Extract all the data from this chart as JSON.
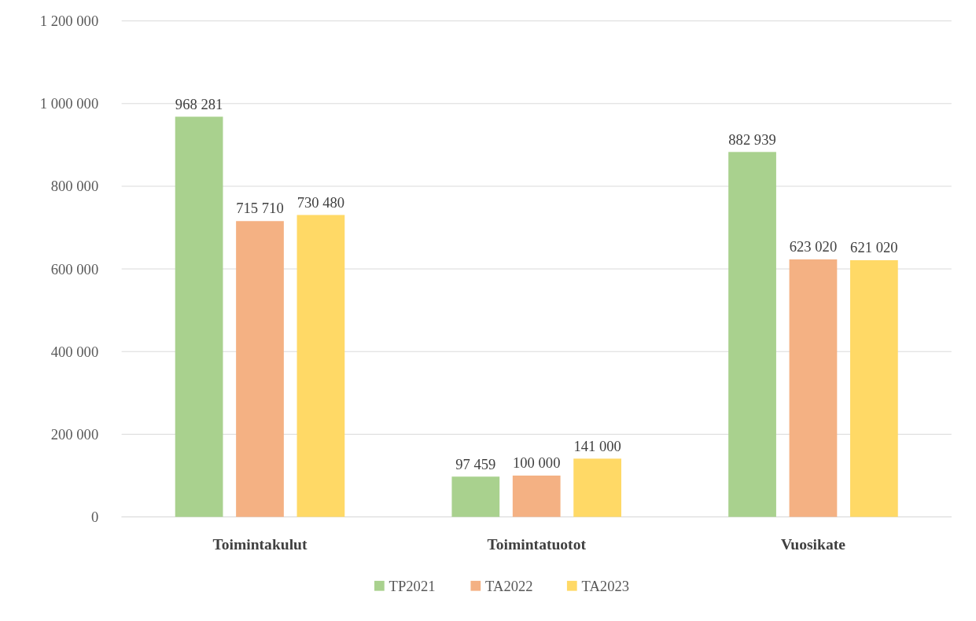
{
  "chart_data": {
    "type": "bar",
    "categories": [
      "Toimintakulut",
      "Toimintatuotot",
      "Vuosikate"
    ],
    "series": [
      {
        "name": "TP2021",
        "color": "#a9d18e",
        "values": [
          968281,
          97459,
          882939
        ]
      },
      {
        "name": "TA2022",
        "color": "#f4b183",
        "values": [
          715710,
          100000,
          623020
        ]
      },
      {
        "name": "TA2023",
        "color": "#ffd966",
        "values": [
          730480,
          141000,
          621020
        ]
      }
    ],
    "ylim": [
      0,
      1200000
    ],
    "yticks": [
      0,
      {
        "value": 200000,
        "label": "200 000"
      },
      {
        "value": 400000,
        "label": "400 000"
      },
      {
        "value": 600000,
        "label": "600 000"
      },
      {
        "value": 800000,
        "label": "800 000"
      },
      {
        "value": 1000000,
        "label": "1 000 000"
      },
      {
        "value": 1200000,
        "label": "1 200 000"
      }
    ],
    "grid": "y",
    "legend": "bottom",
    "data_labels": true
  }
}
